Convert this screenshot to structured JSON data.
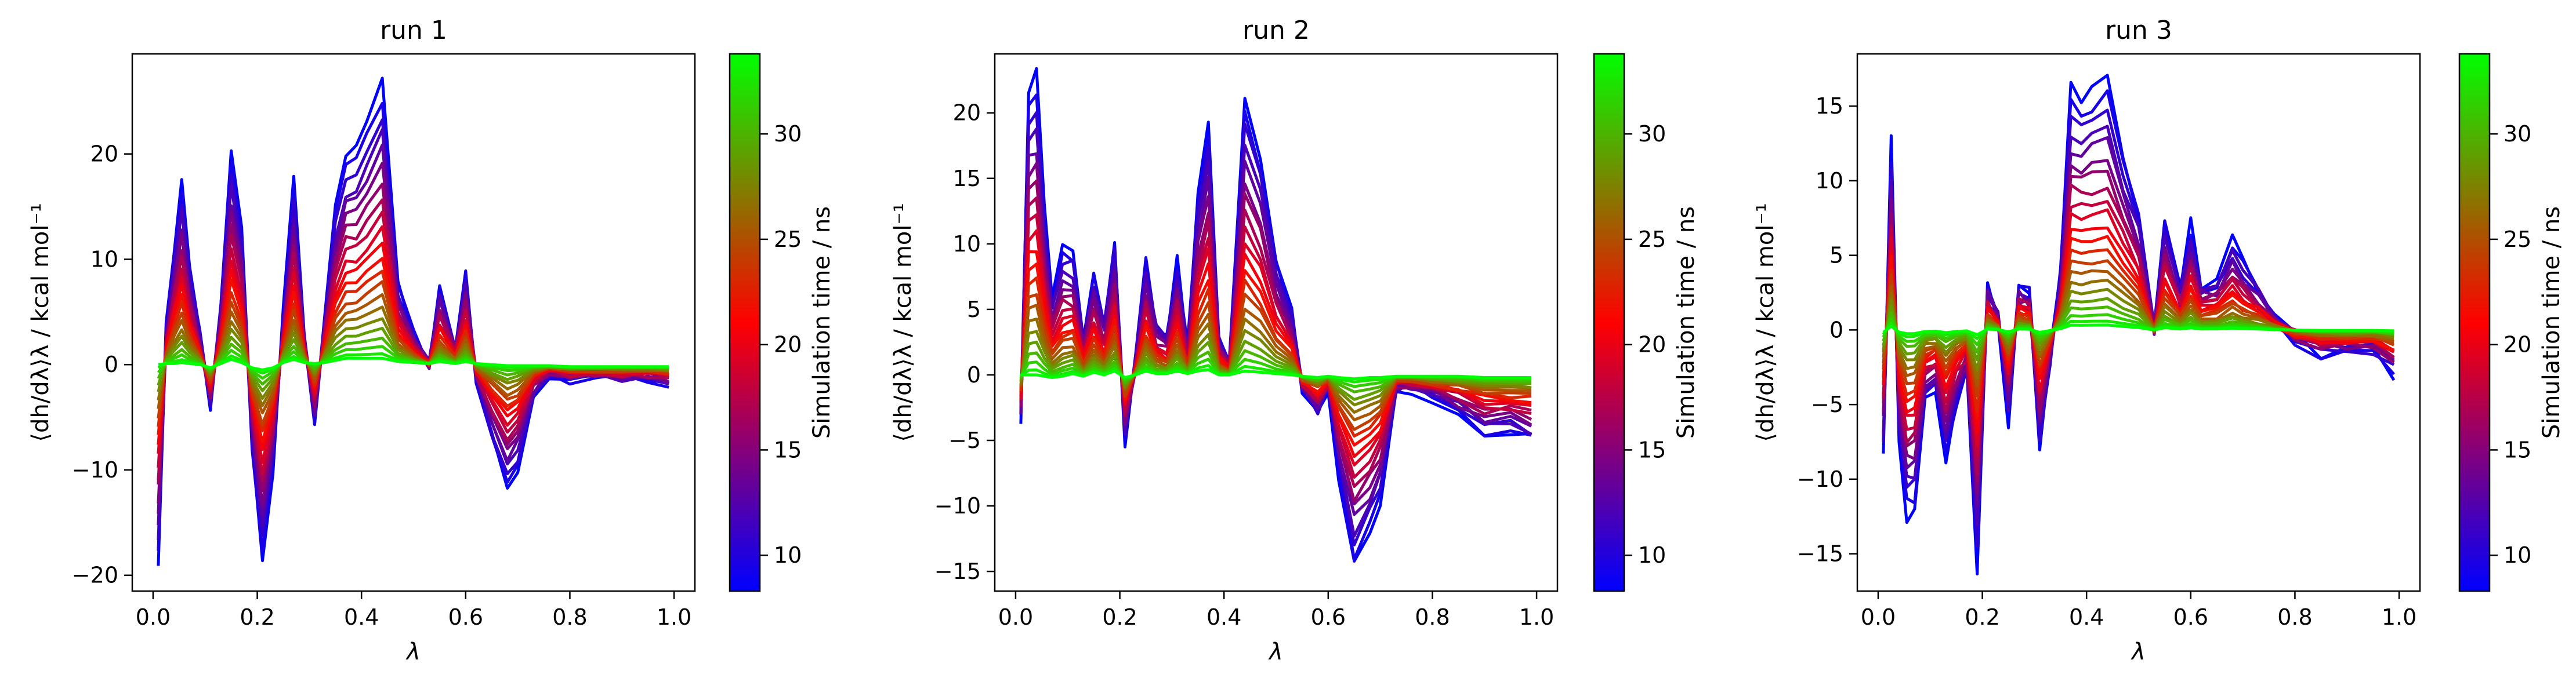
{
  "figure_label": "",
  "colorbar": {
    "label": "Simulation time / ns",
    "range": [
      8.3,
      33.8
    ],
    "ticks": [
      10,
      15,
      20,
      25,
      30
    ],
    "colormap": [
      "#0000ff",
      "#ff0000",
      "#00ff00"
    ]
  },
  "chart_data": [
    {
      "type": "line",
      "title": "run 1",
      "xlabel": "λ",
      "ylabel": "⟨dh/dλ⟩λ / kcal mol⁻¹",
      "xlim": [
        -0.04,
        1.04
      ],
      "ylim": [
        -21.5,
        29.5
      ],
      "xticks": [
        0.0,
        0.2,
        0.4,
        0.6,
        0.8,
        1.0
      ],
      "yticks": [
        -20,
        -10,
        0,
        10,
        20
      ],
      "x": [
        0.01,
        0.025,
        0.04,
        0.055,
        0.07,
        0.09,
        0.11,
        0.13,
        0.15,
        0.17,
        0.19,
        0.21,
        0.23,
        0.25,
        0.27,
        0.29,
        0.31,
        0.33,
        0.35,
        0.37,
        0.39,
        0.41,
        0.44,
        0.47,
        0.5,
        0.53,
        0.55,
        0.58,
        0.6,
        0.62,
        0.65,
        0.68,
        0.7,
        0.73,
        0.76,
        0.8,
        0.85,
        0.9,
        0.95,
        0.99
      ],
      "first": [
        -18.5,
        3.5,
        11,
        17.5,
        9.5,
        3,
        -4.5,
        6,
        20.5,
        13,
        -8,
        -19,
        -10,
        5,
        17.5,
        3,
        -6,
        5,
        15,
        20,
        20.5,
        23,
        27,
        8,
        3,
        0,
        7.5,
        2,
        9,
        -1.5,
        -7,
        -12,
        -10,
        -3,
        -1,
        -1.5,
        -1.5,
        -1.5,
        -1.5,
        -2
      ],
      "last": [
        0,
        0.1,
        0.1,
        0.2,
        0.1,
        0,
        -0.3,
        0.1,
        0.5,
        0.2,
        -0.3,
        -0.5,
        -0.3,
        0.2,
        0.5,
        0.2,
        0.1,
        0.2,
        0.4,
        0.6,
        0.6,
        0.6,
        0.6,
        0.3,
        0.2,
        0.1,
        0.3,
        0.1,
        0.3,
        0.1,
        0,
        -0.1,
        -0.1,
        -0.1,
        -0.1,
        -0.2,
        -0.2,
        -0.2,
        -0.2,
        -0.2
      ]
    },
    {
      "type": "line",
      "title": "run 2",
      "xlabel": "λ",
      "ylabel": "⟨dh/dλ⟩λ / kcal mol⁻¹",
      "xlim": [
        -0.04,
        1.04
      ],
      "ylim": [
        -16.5,
        24.5
      ],
      "xticks": [
        0.0,
        0.2,
        0.4,
        0.6,
        0.8,
        1.0
      ],
      "yticks": [
        -15,
        -10,
        -5,
        0,
        5,
        10,
        15,
        20
      ],
      "x": [
        0.01,
        0.025,
        0.04,
        0.055,
        0.07,
        0.09,
        0.11,
        0.13,
        0.15,
        0.17,
        0.19,
        0.21,
        0.23,
        0.25,
        0.27,
        0.29,
        0.31,
        0.33,
        0.35,
        0.37,
        0.39,
        0.41,
        0.44,
        0.47,
        0.5,
        0.53,
        0.55,
        0.58,
        0.6,
        0.62,
        0.65,
        0.68,
        0.7,
        0.73,
        0.76,
        0.8,
        0.85,
        0.9,
        0.95,
        0.99
      ],
      "first": [
        -3.5,
        22,
        23,
        13,
        6,
        9.5,
        9.5,
        3,
        8,
        4,
        10.5,
        -5,
        1,
        9,
        4,
        3,
        9,
        2,
        14,
        19.5,
        3,
        1,
        21.5,
        17,
        9,
        5,
        -1,
        -3,
        -1,
        -7.5,
        -14.5,
        -12,
        -9.5,
        -1,
        -1,
        -2,
        -3,
        -4.5,
        -4.5,
        -5
      ],
      "last": [
        0,
        0,
        0,
        -0.1,
        -0.2,
        -0.1,
        0.1,
        -0.1,
        0.2,
        0,
        0.3,
        -0.2,
        0,
        0.3,
        0.1,
        0.1,
        0.3,
        0.1,
        0.3,
        0.4,
        0,
        0,
        0.3,
        0.2,
        0.1,
        0,
        -0.1,
        -0.2,
        -0.1,
        -0.2,
        -0.3,
        -0.2,
        -0.2,
        -0.1,
        -0.1,
        -0.1,
        -0.1,
        -0.2,
        -0.2,
        -0.2
      ]
    },
    {
      "type": "line",
      "title": "run 3",
      "xlabel": "λ",
      "ylabel": "⟨dh/dλ⟩λ / kcal mol⁻¹",
      "xlim": [
        -0.04,
        1.04
      ],
      "ylim": [
        -17.5,
        18.5
      ],
      "xticks": [
        0.0,
        0.2,
        0.4,
        0.6,
        0.8,
        1.0
      ],
      "yticks": [
        -15,
        -10,
        -5,
        0,
        5,
        10,
        15
      ],
      "x": [
        0.01,
        0.025,
        0.04,
        0.055,
        0.07,
        0.09,
        0.11,
        0.13,
        0.15,
        0.17,
        0.19,
        0.21,
        0.23,
        0.25,
        0.27,
        0.29,
        0.31,
        0.33,
        0.35,
        0.37,
        0.39,
        0.41,
        0.44,
        0.47,
        0.5,
        0.53,
        0.55,
        0.58,
        0.6,
        0.62,
        0.65,
        0.68,
        0.7,
        0.73,
        0.76,
        0.8,
        0.85,
        0.9,
        0.95,
        0.99
      ],
      "first": [
        -8,
        12.5,
        -7,
        -12.5,
        -12,
        -5,
        -4,
        -9,
        -5,
        -3,
        -16,
        3,
        1,
        -6,
        3,
        2.5,
        -8,
        -2,
        4,
        16,
        15.5,
        16,
        16.5,
        12,
        8,
        0,
        7.5,
        3,
        7,
        3,
        3.5,
        6,
        4.5,
        3,
        1,
        -0.5,
        -1.5,
        -1.5,
        -1.5,
        -3
      ]
    }
  ]
}
